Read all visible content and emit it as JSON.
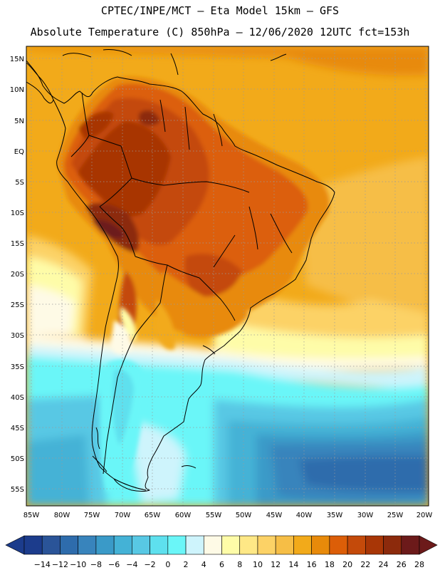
{
  "header": {
    "line1": "CPTEC/INPE/MCT –  Eta Model 15km – GFS",
    "line2": "Absolute Temperature (C) 850hPa – 12/06/2020 12UTC fct=153h"
  },
  "map": {
    "lat_labels": [
      "15N",
      "10N",
      "5N",
      "EQ",
      "5S",
      "10S",
      "15S",
      "20S",
      "25S",
      "30S",
      "35S",
      "40S",
      "45S",
      "50S",
      "55S"
    ],
    "lon_labels": [
      "85W",
      "80W",
      "75W",
      "70W",
      "65W",
      "60W",
      "55W",
      "50W",
      "45W",
      "40W",
      "35W",
      "30W",
      "25W",
      "20W"
    ]
  },
  "colorbar": {
    "colors": [
      "#1c3c8c",
      "#2a5498",
      "#2e6cac",
      "#3884bc",
      "#3a9ac8",
      "#44b2d6",
      "#58c8e4",
      "#5ee0ee",
      "#6af6f8",
      "#cef4fc",
      "#fefae6",
      "#fefca8",
      "#fee886",
      "#fcd266",
      "#f6be46",
      "#f2aa1a",
      "#e88a0a",
      "#dc5e08",
      "#c44a0a",
      "#a83606",
      "#8c2a0c",
      "#6c1a1a"
    ],
    "labels": [
      "-14",
      "-12",
      "-10",
      "-8",
      "-6",
      "-4",
      "-2",
      "0",
      "2",
      "4",
      "6",
      "8",
      "10",
      "12",
      "14",
      "16",
      "18",
      "20",
      "22",
      "24",
      "26",
      "28"
    ]
  }
}
